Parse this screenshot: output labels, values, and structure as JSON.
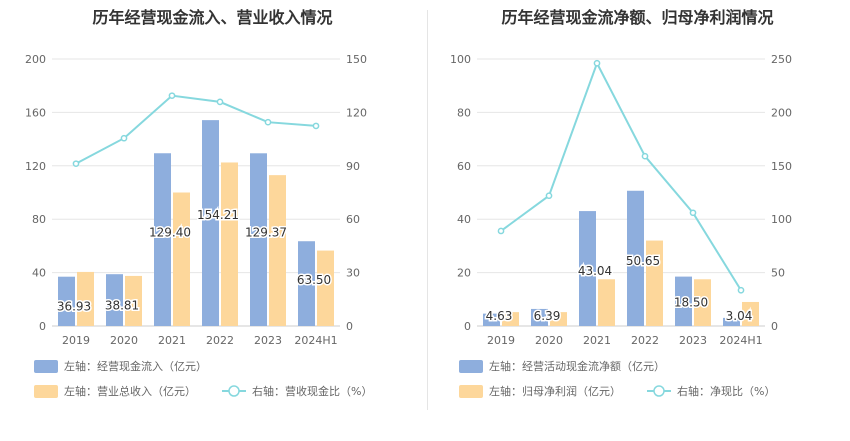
{
  "colors": {
    "bar_blue": "#8eaedd",
    "bar_orange": "#fdd79b",
    "line": "#86d8de",
    "grid": "#e6e6e6",
    "axis_text": "#666666",
    "title_text": "#333333"
  },
  "chart_data": [
    {
      "type": "bar",
      "title": "历年经营现金流入、营业收入情况",
      "categories": [
        "2019",
        "2020",
        "2021",
        "2022",
        "2023",
        "2024H1"
      ],
      "left_axis": {
        "ticks": [
          "0",
          "40",
          "80",
          "120",
          "160",
          "200"
        ],
        "ylim": [
          0,
          200
        ]
      },
      "right_axis": {
        "ticks": [
          "0",
          "30",
          "60",
          "90",
          "120",
          "150"
        ],
        "ylim": [
          0,
          150
        ]
      },
      "series": [
        {
          "name": "左轴：经营现金流入（亿元）",
          "kind": "bar",
          "axis": "left",
          "color": "#8eaedd",
          "values": [
            36.93,
            38.81,
            129.4,
            154.21,
            129.37,
            63.5
          ],
          "labels": [
            "36.93",
            "38.81",
            "129.40",
            "154.21",
            "129.37",
            "63.50"
          ]
        },
        {
          "name": "左轴：营业总收入（亿元）",
          "kind": "bar",
          "axis": "left",
          "color": "#fdd79b",
          "values": [
            40.5,
            37.5,
            100.0,
            122.5,
            113.0,
            56.5
          ]
        },
        {
          "name": "右轴：营收现金比（%）",
          "kind": "line",
          "axis": "right",
          "color": "#86d8de",
          "values": [
            91.2,
            105.5,
            129.4,
            125.9,
            114.5,
            112.4
          ]
        }
      ],
      "legend": [
        {
          "label": "左轴：经营现金流入（亿元）",
          "marker": "bar",
          "color": "#8eaedd"
        },
        {
          "label": "左轴：营业总收入（亿元）",
          "marker": "bar",
          "color": "#fdd79b"
        },
        {
          "label": "右轴：营收现金比（%）",
          "marker": "line",
          "color": "#86d8de"
        }
      ],
      "legend_position": "bottom",
      "grid": true
    },
    {
      "type": "bar",
      "title": "历年经营现金流净额、归母净利润情况",
      "categories": [
        "2019",
        "2020",
        "2021",
        "2022",
        "2023",
        "2024H1"
      ],
      "left_axis": {
        "ticks": [
          "0",
          "20",
          "40",
          "60",
          "80",
          "100"
        ],
        "ylim": [
          0,
          100
        ]
      },
      "right_axis": {
        "ticks": [
          "0",
          "50",
          "100",
          "150",
          "200",
          "250"
        ],
        "ylim": [
          0,
          250
        ]
      },
      "series": [
        {
          "name": "左轴：经营活动现金流净额（亿元）",
          "kind": "bar",
          "axis": "left",
          "color": "#8eaedd",
          "values": [
            4.63,
            6.39,
            43.04,
            50.65,
            18.5,
            3.04
          ],
          "labels": [
            "4.63",
            "6.39",
            "43.04",
            "50.65",
            "18.50",
            "3.04"
          ]
        },
        {
          "name": "左轴：归母净利润（亿元）",
          "kind": "bar",
          "axis": "left",
          "color": "#fdd79b",
          "values": [
            5.2,
            5.2,
            17.5,
            32.0,
            17.5,
            9.0
          ]
        },
        {
          "name": "右轴：净现比（%）",
          "kind": "line",
          "axis": "right",
          "color": "#86d8de",
          "values": [
            89.0,
            122.0,
            246.0,
            159.0,
            106.0,
            33.5
          ]
        }
      ],
      "legend": [
        {
          "label": "左轴：经营活动现金流净额（亿元）",
          "marker": "bar",
          "color": "#8eaedd"
        },
        {
          "label": "左轴：归母净利润（亿元）",
          "marker": "bar",
          "color": "#fdd79b"
        },
        {
          "label": "右轴：净现比（%）",
          "marker": "line",
          "color": "#86d8de"
        }
      ],
      "legend_position": "bottom",
      "grid": true
    }
  ]
}
